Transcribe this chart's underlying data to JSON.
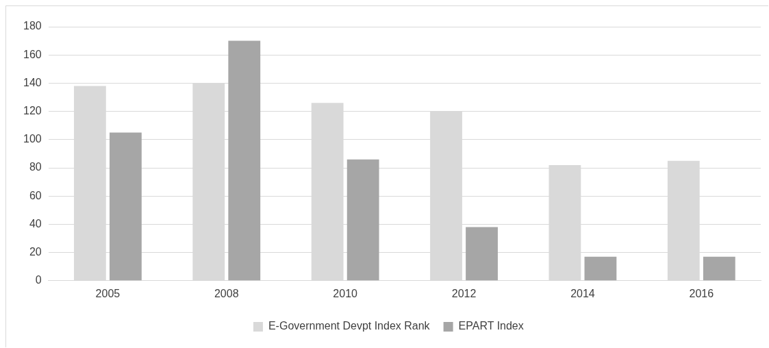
{
  "chart_data": {
    "type": "bar",
    "categories": [
      "2005",
      "2008",
      "2010",
      "2012",
      "2014",
      "2016"
    ],
    "series": [
      {
        "name": "E-Government Devpt Index Rank",
        "color": "#d9d9d9",
        "values": [
          138,
          140,
          126,
          120,
          82,
          85
        ]
      },
      {
        "name": "EPART Index",
        "color": "#a6a6a6",
        "values": [
          105,
          170,
          86,
          38,
          17,
          17
        ]
      }
    ],
    "ylim": [
      0,
      180
    ],
    "yticks": [
      0,
      20,
      40,
      60,
      80,
      100,
      120,
      140,
      160,
      180
    ],
    "grid": "y",
    "legend": "bottom"
  }
}
